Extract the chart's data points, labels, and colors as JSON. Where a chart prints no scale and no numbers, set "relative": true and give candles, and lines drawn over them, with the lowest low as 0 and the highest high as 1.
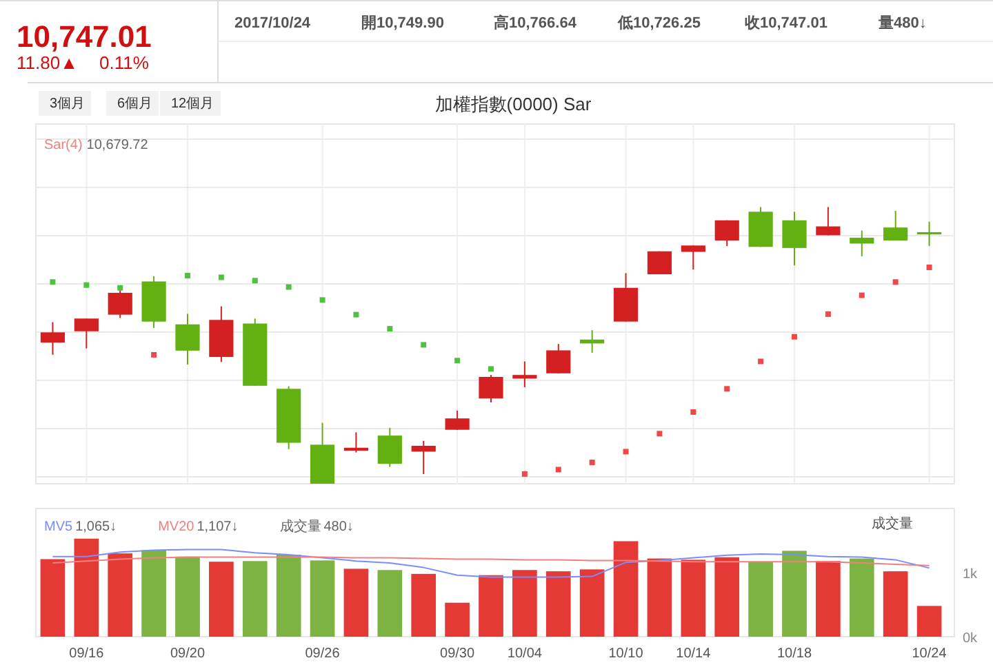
{
  "chart_data": [
    {
      "type": "candlestick",
      "title": "加權指數(0000) Sar",
      "relative": true,
      "grid": true,
      "marker": "square",
      "annotations": [
        "10,747.01",
        "11.80▲",
        "0.11%",
        "2017/10/24",
        "開10,749.90",
        "高10,766.64",
        "低10,726.25",
        "收10,747.01",
        "量480↓",
        "3個月",
        "6個月",
        "12個月",
        "10,679.72"
      ],
      "categories": [
        null,
        null,
        null,
        null,
        null,
        null,
        null,
        null,
        null,
        null,
        null,
        null,
        null,
        null,
        null,
        null,
        null,
        null,
        null,
        null,
        null,
        null,
        null,
        null,
        null,
        null,
        null
      ],
      "ohlc": [
        [
          0.51,
          0.584,
          0.466,
          0.547
        ],
        [
          0.551,
          0.597,
          0.489,
          0.597
        ],
        [
          0.611,
          0.703,
          0.599,
          0.69
        ],
        [
          0.731,
          0.75,
          0.563,
          0.586
        ],
        [
          0.576,
          0.614,
          0.431,
          0.481
        ],
        [
          0.458,
          0.641,
          0.44,
          0.592
        ],
        [
          0.579,
          0.597,
          0.354,
          0.354
        ],
        [
          0.343,
          0.352,
          0.125,
          0.148
        ],
        [
          0.141,
          0.22,
          0,
          0
        ],
        [
          0.119,
          0.186,
          0.113,
          0.13
        ],
        [
          0.174,
          0.202,
          0.061,
          0.072
        ],
        [
          0.116,
          0.155,
          0.035,
          0.137
        ],
        [
          0.195,
          0.264,
          0.195,
          0.236
        ],
        [
          0.308,
          0.393,
          0.294,
          0.386
        ],
        [
          0.38,
          0.442,
          0.349,
          0.393
        ],
        [
          0.399,
          0.505,
          0.399,
          0.482
        ],
        [
          0.521,
          0.555,
          0.473,
          0.507
        ],
        [
          0.586,
          0.761,
          0.586,
          0.708
        ],
        [
          0.757,
          0.84,
          0.757,
          0.84
        ],
        [
          0.838,
          0.861,
          0.774,
          0.861
        ],
        [
          0.879,
          0.952,
          0.859,
          0.952
        ],
        [
          0.983,
          1,
          0.856,
          0.856
        ],
        [
          0.952,
          0.983,
          0.789,
          0.852
        ],
        [
          0.898,
          1,
          0.898,
          0.93
        ],
        [
          0.889,
          0.915,
          0.822,
          0.868
        ],
        [
          0.926,
          0.986,
          0.879,
          0.879
        ],
        [
          0.909,
          0.947,
          0.859,
          0.901
        ]
      ],
      "colors": [
        "#d42020",
        "#d42020",
        "#d42020",
        "#62b012",
        "#62b012",
        "#d42020",
        "#62b012",
        "#62b012",
        "#62b012",
        "#d42020",
        "#62b012",
        "#d42020",
        "#d42020",
        "#d42020",
        "#d42020",
        "#d42020",
        "#62b012",
        "#d42020",
        "#d42020",
        "#d42020",
        "#d42020",
        "#62b012",
        "#62b012",
        "#d42020",
        "#62b012",
        "#62b012",
        "#62b012"
      ],
      "series": [
        {
          "name": "Sar(4)",
          "type": "scatter",
          "color": "#f08080",
          "values": [
            0.729,
            0.718,
            0.708,
            0.466,
            0.752,
            0.746,
            0.734,
            0.711,
            0.664,
            0.611,
            0.56,
            0.502,
            0.445,
            0.415,
            0.035,
            0.051,
            0.077,
            0.116,
            0.181,
            0.259,
            0.343,
            0.442,
            0.531,
            0.613,
            0.681,
            0.729,
            0.782
          ],
          "colors": [
            "#50c040",
            "#50c040",
            "#50c040",
            "#f04848",
            "#50c040",
            "#50c040",
            "#50c040",
            "#50c040",
            "#50c040",
            "#50c040",
            "#50c040",
            "#50c040",
            "#50c040",
            "#50c040",
            "#f04848",
            "#f04848",
            "#f04848",
            "#f04848",
            "#f04848",
            "#f04848",
            "#f04848",
            "#f04848",
            "#f04848",
            "#f04848",
            "#f04848",
            "#f04848",
            "#f04848"
          ]
        }
      ]
    },
    {
      "type": "bar",
      "ylabel": "成交量",
      "legend": "top left",
      "ylim": [
        0,
        2
      ],
      "yticks": [
        {
          "value": 0,
          "label": "0k"
        },
        {
          "value": 1,
          "label": "1k"
        }
      ],
      "annotations": [
        "1,065↓",
        "1,107↓",
        "480↓"
      ],
      "categories": [
        null,
        "09/16",
        null,
        null,
        "09/20",
        null,
        null,
        null,
        "09/26",
        null,
        null,
        null,
        "09/30",
        null,
        "10/04",
        null,
        null,
        "10/10",
        null,
        "10/14",
        null,
        null,
        "10/18",
        null,
        null,
        null,
        "10/24"
      ],
      "series": [
        {
          "name": "MV5",
          "type": "line",
          "color": "#7b8cff",
          "values": [
            1.25,
            1.25,
            1.32,
            1.35,
            1.36,
            1.36,
            1.31,
            1.28,
            1.23,
            1.18,
            1.15,
            1.08,
            0.96,
            0.93,
            0.93,
            0.93,
            0.94,
            1.16,
            1.19,
            1.23,
            1.27,
            1.29,
            1.28,
            1.25,
            1.24,
            1.2,
            1.07
          ]
        },
        {
          "name": "MV20",
          "type": "line",
          "color": "#f08080",
          "values": [
            1.15,
            1.18,
            1.21,
            1.23,
            1.24,
            1.24,
            1.24,
            1.24,
            1.24,
            1.23,
            1.23,
            1.22,
            1.21,
            1.21,
            1.2,
            1.2,
            1.19,
            1.19,
            1.18,
            1.17,
            1.17,
            1.17,
            1.17,
            1.17,
            1.15,
            1.13,
            1.11
          ]
        },
        {
          "name": "成交量",
          "type": "bar",
          "values": [
            1.21,
            1.53,
            1.3,
            1.35,
            1.25,
            1.17,
            1.18,
            1.28,
            1.19,
            1.06,
            1.04,
            0.98,
            0.53,
            0.96,
            1.04,
            1.02,
            1.05,
            1.49,
            1.22,
            1.2,
            1.24,
            1.17,
            1.34,
            1.18,
            1.22,
            1.02,
            0.48
          ],
          "colors": [
            "#e53935",
            "#e53935",
            "#e53935",
            "#7cb342",
            "#7cb342",
            "#e53935",
            "#7cb342",
            "#7cb342",
            "#7cb342",
            "#e53935",
            "#7cb342",
            "#e53935",
            "#e53935",
            "#e53935",
            "#e53935",
            "#e53935",
            "#e53935",
            "#e53935",
            "#e53935",
            "#e53935",
            "#e53935",
            "#7cb342",
            "#7cb342",
            "#e53935",
            "#7cb342",
            "#e53935",
            "#e53935"
          ]
        }
      ]
    }
  ]
}
